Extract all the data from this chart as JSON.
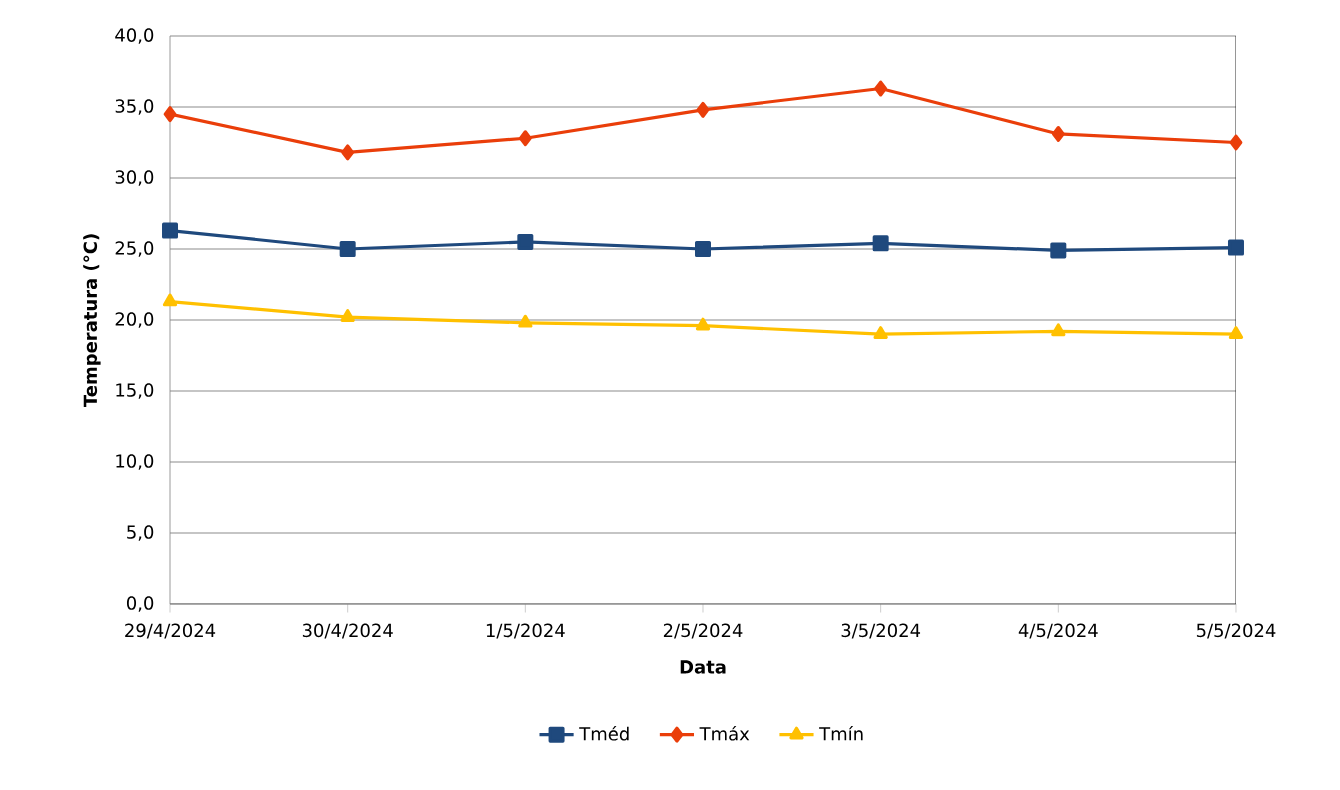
{
  "chart_data": {
    "type": "line",
    "xlabel": "Data",
    "ylabel": "Temperatura (°C)",
    "categories": [
      "29/4/2024",
      "30/4/2024",
      "1/5/2024",
      "2/5/2024",
      "3/5/2024",
      "4/5/2024",
      "5/5/2024"
    ],
    "series": [
      {
        "name": "Tméd",
        "color": "#1f497d",
        "marker": "square",
        "values": [
          26.3,
          25.0,
          25.5,
          25.0,
          25.4,
          24.9,
          25.1
        ]
      },
      {
        "name": "Tmáx",
        "color": "#ea3e0a",
        "marker": "diamond",
        "values": [
          34.5,
          31.8,
          32.8,
          34.8,
          36.3,
          33.1,
          32.5
        ]
      },
      {
        "name": "Tmín",
        "color": "#ffc000",
        "marker": "triangle",
        "values": [
          21.3,
          20.2,
          19.8,
          19.6,
          19.0,
          19.2,
          19.0
        ]
      }
    ],
    "ylim": [
      0,
      40
    ],
    "yticks": [
      {
        "value": 0,
        "label": "0,0"
      },
      {
        "value": 5,
        "label": "5,0"
      },
      {
        "value": 10,
        "label": "10,0"
      },
      {
        "value": 15,
        "label": "15,0"
      },
      {
        "value": 20,
        "label": "20,0"
      },
      {
        "value": 25,
        "label": "25,0"
      },
      {
        "value": 30,
        "label": "30,0"
      },
      {
        "value": 35,
        "label": "35,0"
      },
      {
        "value": 40,
        "label": "40,0"
      }
    ],
    "grid": "y",
    "legend": "bottom",
    "line_style": "solid"
  }
}
